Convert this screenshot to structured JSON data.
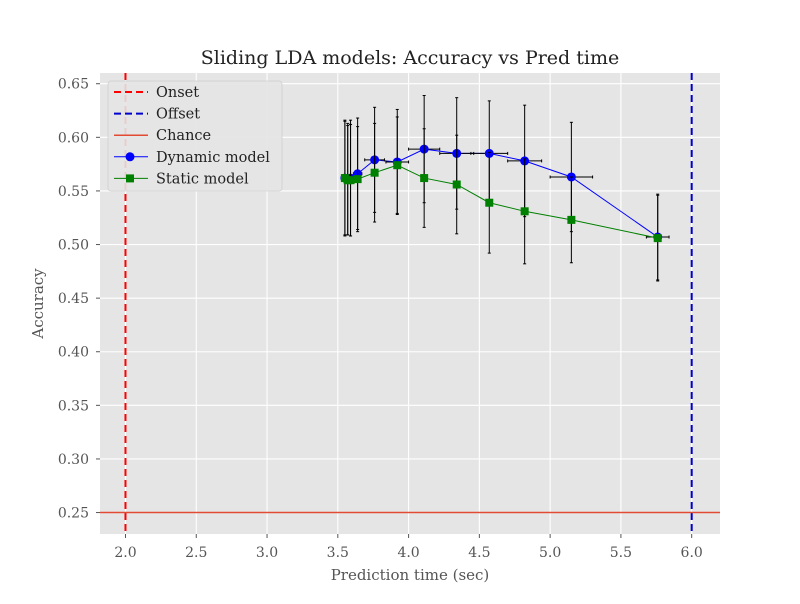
{
  "chart_data": {
    "type": "line",
    "title": "Sliding LDA models: Accuracy vs Pred time",
    "xlabel": "Prediction time (sec)",
    "ylabel": "Accuracy",
    "xlim": [
      1.82,
      6.2
    ],
    "ylim": [
      0.23,
      0.66
    ],
    "xticks": [
      2.0,
      2.5,
      3.0,
      3.5,
      4.0,
      4.5,
      5.0,
      5.5,
      6.0
    ],
    "xtick_labels": [
      "2.0",
      "2.5",
      "3.0",
      "3.5",
      "4.0",
      "4.5",
      "5.0",
      "5.5",
      "6.0"
    ],
    "yticks": [
      0.25,
      0.3,
      0.35,
      0.4,
      0.45,
      0.5,
      0.55,
      0.6,
      0.65
    ],
    "ytick_labels": [
      "0.25",
      "0.30",
      "0.35",
      "0.40",
      "0.45",
      "0.50",
      "0.55",
      "0.60",
      "0.65"
    ],
    "grid": true,
    "legend_position": "top-left",
    "reference_lines": [
      {
        "name": "Onset",
        "orientation": "vertical",
        "value": 2.0,
        "color": "#ff0000",
        "style": "dashed"
      },
      {
        "name": "Offset",
        "orientation": "vertical",
        "value": 6.0,
        "color": "#0000cc",
        "style": "dashed"
      },
      {
        "name": "Chance",
        "orientation": "horizontal",
        "value": 0.25,
        "color": "#e24a33",
        "style": "solid"
      }
    ],
    "series": [
      {
        "name": "Dynamic model",
        "color": "#0000ff",
        "marker": "circle",
        "x": [
          3.55,
          3.57,
          3.59,
          3.64,
          3.76,
          3.92,
          4.11,
          4.34,
          4.57,
          4.82,
          5.15,
          5.76
        ],
        "y": [
          0.562,
          0.561,
          0.562,
          0.566,
          0.579,
          0.577,
          0.589,
          0.585,
          0.585,
          0.578,
          0.563,
          0.507
        ],
        "x_err": [
          0.0,
          0.0,
          0.01,
          0.03,
          0.07,
          0.08,
          0.11,
          0.12,
          0.13,
          0.12,
          0.15,
          0.08
        ],
        "y_err": [
          0.054,
          0.052,
          0.054,
          0.052,
          0.049,
          0.049,
          0.05,
          0.052,
          0.049,
          0.052,
          0.051,
          0.04
        ]
      },
      {
        "name": "Static model",
        "color": "#008000",
        "marker": "square",
        "x": [
          3.55,
          3.57,
          3.59,
          3.64,
          3.76,
          3.92,
          4.11,
          4.34,
          4.57,
          4.82,
          5.15,
          5.76
        ],
        "y": [
          0.562,
          0.56,
          0.56,
          0.561,
          0.567,
          0.574,
          0.562,
          0.556,
          0.539,
          0.531,
          0.523,
          0.506
        ],
        "y_err": [
          0.053,
          0.051,
          0.052,
          0.049,
          0.046,
          0.045,
          0.046,
          0.046,
          0.047,
          0.049,
          0.04,
          0.04
        ]
      }
    ]
  }
}
